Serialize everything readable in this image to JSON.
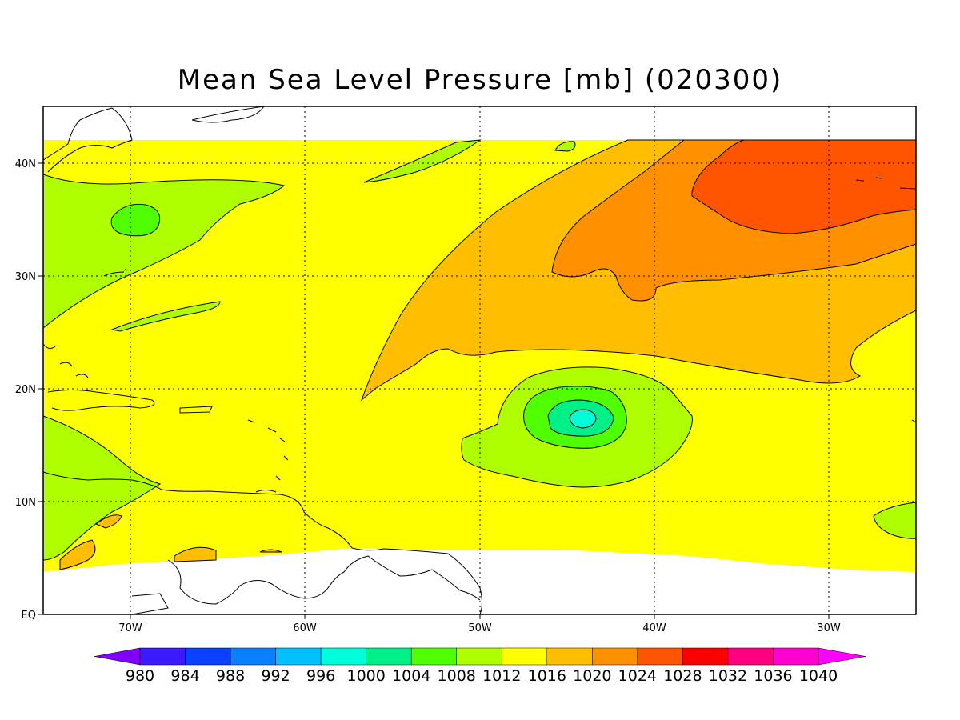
{
  "title": "Mean Sea Level Pressure [mb] (020300)",
  "map": {
    "lon_labels": [
      "70W",
      "60W",
      "50W",
      "40W",
      "30W"
    ],
    "lat_labels": [
      "40N",
      "30N",
      "20N",
      "10N",
      "EQ"
    ],
    "lon_range": [
      -75,
      -25
    ],
    "lat_range": [
      0,
      45
    ],
    "grid": "dotted"
  },
  "colorbar": {
    "levels": [
      "980",
      "984",
      "988",
      "992",
      "996",
      "1000",
      "1004",
      "1008",
      "1012",
      "1016",
      "1020",
      "1024",
      "1028",
      "1032",
      "1036",
      "1040"
    ],
    "colors": [
      "#8000ff",
      "#3a1aff",
      "#0a40ff",
      "#0a80ff",
      "#00c0ff",
      "#00ffd8",
      "#00f088",
      "#50ff00",
      "#b0ff00",
      "#ffff00",
      "#ffbf00",
      "#ff9000",
      "#ff5500",
      "#ff0000",
      "#ff0080",
      "#ff00d0",
      "#ff00ff"
    ]
  },
  "fields": {
    "background": "#ffff00",
    "contour_color": "#000000",
    "low_center": {
      "lon": -44,
      "lat": 17.5,
      "value_band": "1000-1004"
    },
    "high_center": {
      "lon": -33,
      "lat": 37,
      "value_band": "1024-1028"
    }
  }
}
